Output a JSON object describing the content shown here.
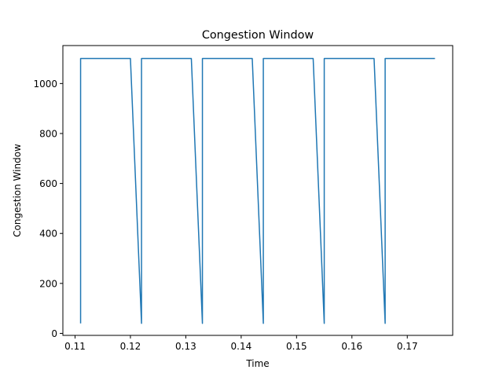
{
  "chart_data": {
    "type": "line",
    "title": "Congestion Window",
    "xlabel": "Time",
    "ylabel": "Congestion Window",
    "xlim": [
      0.1078,
      0.1782
    ],
    "ylim": [
      -8,
      1152
    ],
    "xticks": [
      0.11,
      0.12,
      0.13,
      0.14,
      0.15,
      0.16,
      0.17
    ],
    "xtick_labels": [
      "0.11",
      "0.12",
      "0.13",
      "0.14",
      "0.15",
      "0.16",
      "0.17"
    ],
    "yticks": [
      0,
      200,
      400,
      600,
      800,
      1000
    ],
    "ytick_labels": [
      "0",
      "200",
      "400",
      "600",
      "800",
      "1000"
    ],
    "grid": false,
    "series": [
      {
        "color": "#1f77b4",
        "x": [
          0.111,
          0.111,
          0.12,
          0.122,
          0.122,
          0.131,
          0.133,
          0.133,
          0.142,
          0.144,
          0.144,
          0.153,
          0.155,
          0.155,
          0.164,
          0.166,
          0.166,
          0.175
        ],
        "y": [
          40,
          1100,
          1100,
          40,
          1100,
          1100,
          40,
          1100,
          1100,
          40,
          1100,
          1100,
          40,
          1100,
          1100,
          40,
          1100,
          1100
        ]
      }
    ]
  }
}
